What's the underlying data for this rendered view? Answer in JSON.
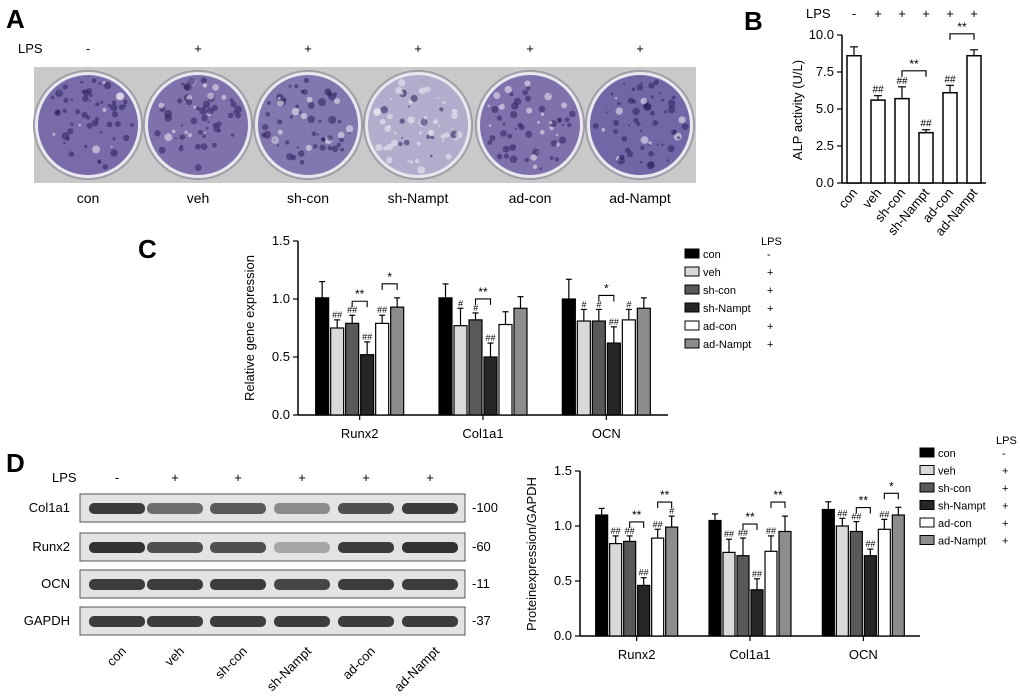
{
  "panels": {
    "A": {
      "letter": "A",
      "lps_label": "LPS",
      "lps_signs": [
        "-",
        "+",
        "+",
        "+",
        "+",
        "+"
      ],
      "groups": [
        "con",
        "veh",
        "sh-con",
        "sh-Nampt",
        "ad-con",
        "ad-Nampt"
      ],
      "stain_density": [
        0.85,
        0.8,
        0.75,
        0.3,
        0.8,
        0.9
      ],
      "stain_color": "#5a4a96"
    },
    "B": {
      "letter": "B",
      "lps_label": "LPS",
      "lps_signs": [
        "-",
        "+",
        "+",
        "+",
        "+",
        "+"
      ]
    },
    "C": {
      "letter": "C",
      "legend_header": "LPS",
      "legend": [
        {
          "label": "con",
          "sign": "-"
        },
        {
          "label": "veh",
          "sign": "+"
        },
        {
          "label": "sh-con",
          "sign": "+"
        },
        {
          "label": "sh-Nampt",
          "sign": "+"
        },
        {
          "label": "ad-con",
          "sign": "+"
        },
        {
          "label": "ad-Nampt",
          "sign": "+"
        }
      ]
    },
    "D": {
      "letter": "D",
      "lps_label": "LPS",
      "lps_signs": [
        "-",
        "+",
        "+",
        "+",
        "+",
        "+"
      ],
      "blot_rows": [
        {
          "name": "Col1a1",
          "kda": "-100",
          "intensity": [
            0.85,
            0.6,
            0.7,
            0.45,
            0.75,
            0.85
          ]
        },
        {
          "name": "Runx2",
          "kda": "-60",
          "intensity": [
            0.9,
            0.75,
            0.75,
            0.3,
            0.85,
            0.9
          ]
        },
        {
          "name": "OCN",
          "kda": "-11",
          "intensity": [
            0.85,
            0.85,
            0.85,
            0.8,
            0.85,
            0.85
          ]
        },
        {
          "name": "GAPDH",
          "kda": "-37",
          "intensity": [
            0.85,
            0.85,
            0.85,
            0.85,
            0.85,
            0.85
          ]
        }
      ],
      "lanes": [
        "con",
        "veh",
        "sh-con",
        "sh-Nampt",
        "ad-con",
        "ad-Nampt"
      ],
      "legend_header": "LPS",
      "legend": [
        {
          "label": "con",
          "sign": "-"
        },
        {
          "label": "veh",
          "sign": "+"
        },
        {
          "label": "sh-con",
          "sign": "+"
        },
        {
          "label": "sh-Nampt",
          "sign": "+"
        },
        {
          "label": "ad-con",
          "sign": "+"
        },
        {
          "label": "ad-Nampt",
          "sign": "+"
        }
      ]
    }
  },
  "colors": {
    "con": "#000000",
    "veh": "#d9d9d9",
    "sh-con": "#595959",
    "sh-Nampt": "#262626",
    "ad-con": "#ffffff",
    "ad-Nampt": "#8c8c8c"
  },
  "chart_data": [
    {
      "id": "B",
      "type": "bar",
      "ylabel": "ALP activity (U/L)",
      "ylim": [
        0,
        10
      ],
      "yticks": [
        "0.0",
        "2.5",
        "5.0",
        "7.5",
        "10.0"
      ],
      "categories": [
        "con",
        "veh",
        "sh-con",
        "sh-Nampt",
        "ad-con",
        "ad-Nampt"
      ],
      "values": [
        8.6,
        5.6,
        5.7,
        3.4,
        6.1,
        8.6
      ],
      "errors": [
        0.6,
        0.3,
        0.8,
        0.2,
        0.5,
        0.4
      ],
      "marks": [
        "",
        "##",
        "##",
        "##",
        "##",
        ""
      ],
      "brackets": [
        {
          "from": 2,
          "to": 3,
          "label": "**"
        },
        {
          "from": 4,
          "to": 5,
          "label": "**"
        }
      ]
    },
    {
      "id": "C",
      "type": "bar",
      "ylabel": "Relative gene expression",
      "ylim": [
        0,
        1.5
      ],
      "yticks": [
        "0.0",
        "0.5",
        "1.0",
        "1.5"
      ],
      "categories": [
        "Runx2",
        "Col1a1",
        "OCN"
      ],
      "series": [
        {
          "name": "con",
          "values": [
            1.01,
            1.01,
            1.0
          ],
          "errors": [
            0.14,
            0.12,
            0.17
          ],
          "marks": [
            "",
            "",
            ""
          ]
        },
        {
          "name": "veh",
          "values": [
            0.75,
            0.77,
            0.81
          ],
          "errors": [
            0.07,
            0.15,
            0.1
          ],
          "marks": [
            "##",
            "#",
            "#"
          ]
        },
        {
          "name": "sh-con",
          "values": [
            0.79,
            0.82,
            0.81
          ],
          "errors": [
            0.07,
            0.06,
            0.1
          ],
          "marks": [
            "##",
            "#",
            "#"
          ]
        },
        {
          "name": "sh-Nampt",
          "values": [
            0.52,
            0.5,
            0.62
          ],
          "errors": [
            0.11,
            0.12,
            0.14
          ],
          "marks": [
            "##",
            "##",
            "##"
          ]
        },
        {
          "name": "ad-con",
          "values": [
            0.79,
            0.78,
            0.82
          ],
          "errors": [
            0.07,
            0.11,
            0.09
          ],
          "marks": [
            "##",
            "",
            "#"
          ]
        },
        {
          "name": "ad-Nampt",
          "values": [
            0.93,
            0.92,
            0.92
          ],
          "errors": [
            0.08,
            0.1,
            0.09
          ],
          "marks": [
            "",
            "",
            ""
          ]
        }
      ],
      "brackets": [
        {
          "category": 0,
          "from": 2,
          "to": 3,
          "label": "**"
        },
        {
          "category": 0,
          "from": 4,
          "to": 5,
          "label": "*"
        },
        {
          "category": 1,
          "from": 2,
          "to": 3,
          "label": "**"
        },
        {
          "category": 2,
          "from": 2,
          "to": 3,
          "label": "*"
        }
      ]
    },
    {
      "id": "D",
      "type": "bar",
      "ylabel": "Proteinexpression/GAPDH",
      "ylim": [
        0,
        1.5
      ],
      "yticks": [
        "0.0",
        "0.5",
        "1.0",
        "1.5"
      ],
      "categories": [
        "Runx2",
        "Col1a1",
        "OCN"
      ],
      "series": [
        {
          "name": "con",
          "values": [
            1.1,
            1.05,
            1.15
          ],
          "errors": [
            0.06,
            0.06,
            0.07
          ],
          "marks": [
            "",
            "",
            ""
          ]
        },
        {
          "name": "veh",
          "values": [
            0.84,
            0.76,
            1.0
          ],
          "errors": [
            0.07,
            0.12,
            0.07
          ],
          "marks": [
            "##",
            "##",
            "##"
          ]
        },
        {
          "name": "sh-con",
          "values": [
            0.86,
            0.73,
            0.95
          ],
          "errors": [
            0.05,
            0.16,
            0.09
          ],
          "marks": [
            "##",
            "##",
            "##"
          ]
        },
        {
          "name": "sh-Nampt",
          "values": [
            0.46,
            0.42,
            0.73
          ],
          "errors": [
            0.07,
            0.1,
            0.06
          ],
          "marks": [
            "##",
            "##",
            "##"
          ]
        },
        {
          "name": "ad-con",
          "values": [
            0.89,
            0.77,
            0.97
          ],
          "errors": [
            0.08,
            0.14,
            0.09
          ],
          "marks": [
            "##",
            "##",
            "##"
          ]
        },
        {
          "name": "ad-Nampt",
          "values": [
            0.99,
            0.95,
            1.1
          ],
          "errors": [
            0.1,
            0.14,
            0.07
          ],
          "marks": [
            "#",
            "",
            ""
          ]
        }
      ],
      "brackets": [
        {
          "category": 0,
          "from": 2,
          "to": 3,
          "label": "**"
        },
        {
          "category": 0,
          "from": 4,
          "to": 5,
          "label": "**"
        },
        {
          "category": 1,
          "from": 2,
          "to": 3,
          "label": "**"
        },
        {
          "category": 1,
          "from": 4,
          "to": 5,
          "label": "**"
        },
        {
          "category": 2,
          "from": 2,
          "to": 3,
          "label": "**"
        },
        {
          "category": 2,
          "from": 4,
          "to": 5,
          "label": "*"
        }
      ]
    }
  ]
}
